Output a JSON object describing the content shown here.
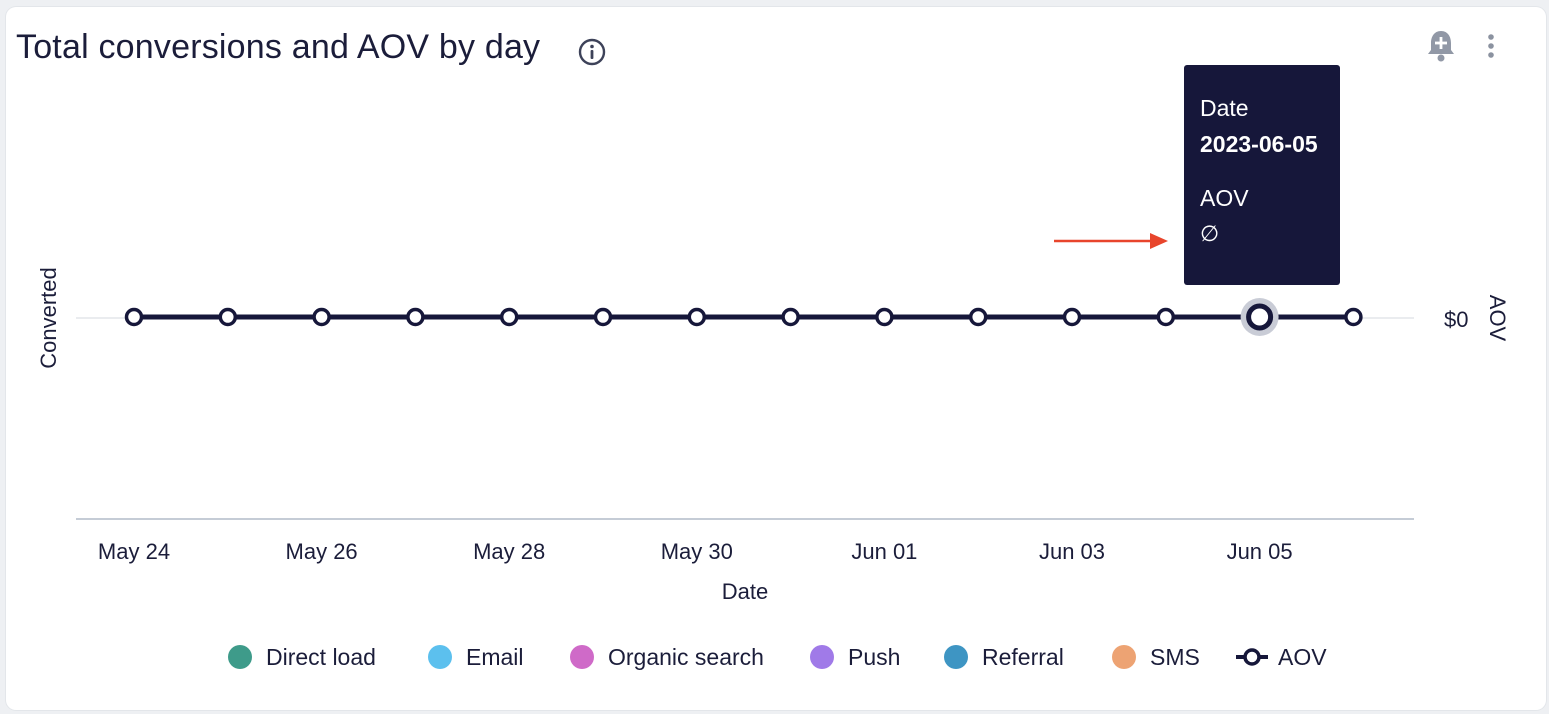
{
  "header": {
    "title": "Total conversions and AOV by day",
    "icons": [
      "info-icon",
      "bell-plus-icon",
      "more-vertical-icon"
    ]
  },
  "chart_data": {
    "type": "line",
    "title": "Total conversions and AOV by day",
    "xlabel": "Date",
    "ylabel_left": "Converted",
    "ylabel_right": "AOV",
    "right_tick_labels": [
      "$0"
    ],
    "x": [
      "2023-05-24",
      "2023-05-25",
      "2023-05-26",
      "2023-05-27",
      "2023-05-28",
      "2023-05-29",
      "2023-05-30",
      "2023-05-31",
      "2023-06-01",
      "2023-06-02",
      "2023-06-03",
      "2023-06-04",
      "2023-06-05",
      "2023-06-06"
    ],
    "x_tick_labels": [
      "May 24",
      "May 26",
      "May 28",
      "May 30",
      "Jun 01",
      "Jun 03",
      "Jun 05"
    ],
    "series": [
      {
        "name": "AOV",
        "values": [
          0,
          0,
          0,
          0,
          0,
          0,
          0,
          0,
          0,
          0,
          0,
          0,
          0,
          0
        ],
        "color": "#16173a"
      }
    ],
    "highlighted_index": 12,
    "legend": [
      {
        "name": "Direct load",
        "color": "#3e9b8a"
      },
      {
        "name": "Email",
        "color": "#5cc0ee"
      },
      {
        "name": "Organic search",
        "color": "#cf6ac8"
      },
      {
        "name": "Push",
        "color": "#a07ae8"
      },
      {
        "name": "Referral",
        "color": "#3e95c3"
      },
      {
        "name": "SMS",
        "color": "#eda373"
      },
      {
        "name": "AOV",
        "color": "#16173a",
        "marker": "line-circle"
      }
    ],
    "legend_position": "bottom",
    "grid": false
  },
  "tooltip": {
    "date_label": "Date",
    "date_value": "2023-06-05",
    "metric_label": "AOV",
    "metric_value": "∅"
  },
  "colors": {
    "arrow": "#e8452c",
    "axis": "#c5ccd6"
  }
}
